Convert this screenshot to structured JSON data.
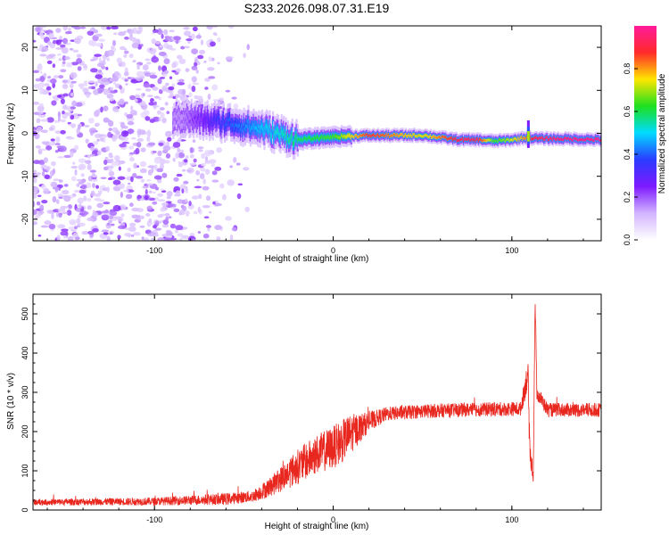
{
  "title": "S233.2026.098.07.31.E19",
  "chart_data": [
    {
      "type": "heatmap",
      "title": "S233.2026.098.07.31.E19",
      "xlabel": "Height of straight line (km)",
      "ylabel": "Frequency (Hz)",
      "xlim": [
        -168,
        150
      ],
      "ylim": [
        -25,
        25
      ],
      "x_ticks": [
        -100,
        0,
        100
      ],
      "y_ticks": [
        -20,
        -10,
        0,
        10,
        20
      ],
      "colorbar": {
        "label": "Normalized spectral amplitude",
        "range": [
          0,
          1
        ],
        "ticks": [
          "0.0",
          "0.2",
          "0.4",
          "0.6",
          "0.8"
        ],
        "colors": [
          "#ffffff",
          "#d2b4ff",
          "#7d1aff",
          "#2a3cff",
          "#00dcff",
          "#1ee01e",
          "#ffe600",
          "#ff2a2a",
          "#ff1a9a"
        ]
      },
      "signal_track": {
        "description_points_x": [
          -85,
          -60,
          -40,
          -20,
          0,
          20,
          50,
          70,
          80,
          90,
          100,
          108,
          112,
          130,
          150
        ],
        "center_freq_hz": [
          3.5,
          2.5,
          1.0,
          -1.5,
          -0.8,
          -0.5,
          -0.5,
          -1.5,
          -1.5,
          -1.8,
          -1.5,
          -1.0,
          -1.2,
          -1.3,
          -1.5
        ],
        "peak_amplitude": [
          0.15,
          0.35,
          0.45,
          0.55,
          0.6,
          0.85,
          0.7,
          0.9,
          0.9,
          0.6,
          0.7,
          0.8,
          0.9,
          0.95,
          0.95
        ]
      }
    },
    {
      "type": "line",
      "xlabel": "Height of straight line (km)",
      "ylabel": "SNR (10 * v/v)",
      "xlim": [
        -168,
        150
      ],
      "ylim": [
        0,
        550
      ],
      "x_ticks": [
        -100,
        0,
        100
      ],
      "y_ticks": [
        0,
        100,
        200,
        300,
        400,
        500
      ],
      "series": [
        {
          "name": "SNR",
          "color": "#e8271f",
          "envelope_x": [
            -168,
            -100,
            -80,
            -60,
            -45,
            -35,
            -20,
            -10,
            0,
            5,
            10,
            20,
            30,
            50,
            70,
            90,
            105,
            109,
            110,
            112,
            113,
            114,
            120,
            140,
            150
          ],
          "envelope_y": [
            20,
            22,
            25,
            28,
            35,
            60,
            110,
            140,
            160,
            175,
            195,
            225,
            245,
            252,
            255,
            257,
            258,
            350,
            150,
            90,
            540,
            300,
            255,
            255,
            255
          ],
          "noise_amplitude": [
            8,
            10,
            12,
            15,
            15,
            25,
            45,
            50,
            55,
            55,
            50,
            25,
            18,
            18,
            18,
            18,
            18,
            40,
            30,
            20,
            30,
            20,
            18,
            18,
            18
          ]
        }
      ]
    }
  ]
}
